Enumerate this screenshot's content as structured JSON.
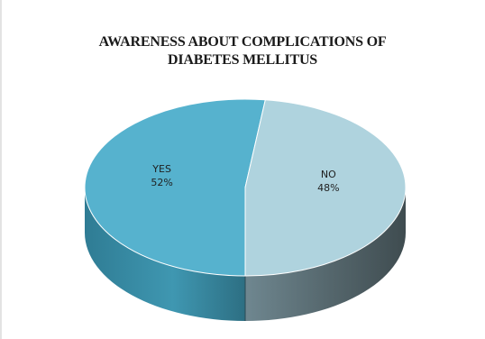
{
  "chart_data": {
    "type": "pie",
    "title_lines": [
      "AWARENESS ABOUT COMPLICATIONS OF",
      "DIABETES MELLITUS"
    ],
    "slices": [
      {
        "label": "YES",
        "percent_label": "52%",
        "value": 52,
        "color": "#56b2ce",
        "side_color": "#3a8ea8"
      },
      {
        "label": "NO",
        "percent_label": "48%",
        "value": 48,
        "color": "#afd3de",
        "side_color": "#5f7378"
      }
    ],
    "style": "3d",
    "legend": "none"
  }
}
